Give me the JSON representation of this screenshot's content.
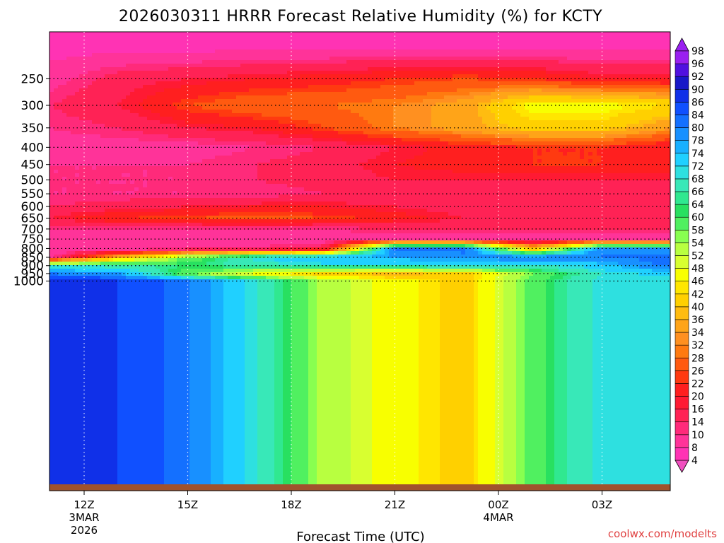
{
  "chart_data": {
    "type": "heatmap",
    "title": "2026030311 HRRR Forecast Relative Humidity (%) for KCTY",
    "xlabel": "Forecast Time (UTC)",
    "ylabel": "",
    "watermark": "coolwx.com/modelts",
    "y_axis": {
      "scale": "pressure (log)",
      "ticks": [
        250,
        300,
        350,
        400,
        450,
        500,
        550,
        600,
        650,
        700,
        750,
        800,
        850,
        900,
        950,
        1000
      ]
    },
    "x_axis": {
      "ticks": [
        {
          "hour": 0,
          "label": "12Z",
          "sub": [
            "3MAR",
            "2026"
          ]
        },
        {
          "hour": 3,
          "label": "15Z",
          "sub": []
        },
        {
          "hour": 6,
          "label": "18Z",
          "sub": []
        },
        {
          "hour": 9,
          "label": "21Z",
          "sub": []
        },
        {
          "hour": 12,
          "label": "00Z",
          "sub": [
            "4MAR"
          ]
        },
        {
          "hour": 15,
          "label": "03Z",
          "sub": []
        }
      ],
      "range_hours": [
        -1,
        17
      ]
    },
    "colorbar": {
      "levels": [
        4,
        8,
        10,
        14,
        16,
        20,
        22,
        26,
        28,
        32,
        34,
        36,
        40,
        42,
        46,
        48,
        52,
        54,
        58,
        60,
        64,
        66,
        68,
        72,
        74,
        78,
        80,
        84,
        86,
        90,
        92,
        96,
        98
      ],
      "colors": [
        "#f04fbf",
        "#ff33b4",
        "#ff3399",
        "#ff2a7a",
        "#ff2255",
        "#ff1a33",
        "#ff1f1f",
        "#ff3a10",
        "#ff5a10",
        "#ff7a10",
        "#ff9020",
        "#ffa418",
        "#ffbc10",
        "#ffd000",
        "#ffe600",
        "#f8ff00",
        "#d8ff30",
        "#b8ff40",
        "#88ff50",
        "#50f060",
        "#28e060",
        "#30e890",
        "#38e8b8",
        "#2ee0e0",
        "#20d0ff",
        "#18b0ff",
        "#1890ff",
        "#1470ff",
        "#1050ff",
        "#1030e8",
        "#1818c8",
        "#5010e0",
        "#9a20f0"
      ]
    },
    "pressure_levels": [
      200,
      250,
      300,
      350,
      400,
      450,
      500,
      550,
      600,
      650,
      700,
      750,
      800,
      850,
      900,
      950,
      1000
    ],
    "times_hours": [
      -1,
      1,
      3,
      5,
      7,
      9,
      11,
      13,
      15,
      17
    ],
    "rh": [
      [
        8,
        8,
        8,
        8,
        8,
        8,
        8,
        8,
        8,
        8
      ],
      [
        12,
        18,
        20,
        22,
        24,
        26,
        28,
        26,
        22,
        22
      ],
      [
        16,
        20,
        28,
        32,
        32,
        34,
        38,
        50,
        50,
        46
      ],
      [
        14,
        16,
        20,
        22,
        28,
        34,
        38,
        44,
        44,
        36
      ],
      [
        12,
        12,
        12,
        14,
        16,
        20,
        24,
        26,
        26,
        22
      ],
      [
        14,
        14,
        14,
        16,
        18,
        22,
        24,
        26,
        26,
        24
      ],
      [
        14,
        14,
        14,
        16,
        18,
        20,
        20,
        20,
        20,
        20
      ],
      [
        14,
        14,
        14,
        14,
        16,
        16,
        16,
        18,
        18,
        18
      ],
      [
        16,
        18,
        20,
        22,
        22,
        20,
        18,
        16,
        16,
        16
      ],
      [
        20,
        26,
        28,
        30,
        28,
        24,
        20,
        18,
        18,
        16
      ],
      [
        14,
        14,
        14,
        14,
        14,
        16,
        16,
        16,
        16,
        16
      ],
      [
        12,
        12,
        12,
        12,
        12,
        12,
        12,
        10,
        12,
        12
      ],
      [
        10,
        10,
        12,
        14,
        18,
        86,
        86,
        40,
        84,
        80
      ],
      [
        12,
        40,
        60,
        74,
        80,
        80,
        82,
        84,
        84,
        86
      ],
      [
        72,
        70,
        66,
        70,
        72,
        72,
        74,
        72,
        76,
        86
      ],
      [
        84,
        80,
        60,
        50,
        44,
        40,
        44,
        60,
        72,
        76
      ],
      [
        92,
        90,
        84,
        72,
        56,
        50,
        44,
        62,
        74,
        72
      ]
    ]
  }
}
